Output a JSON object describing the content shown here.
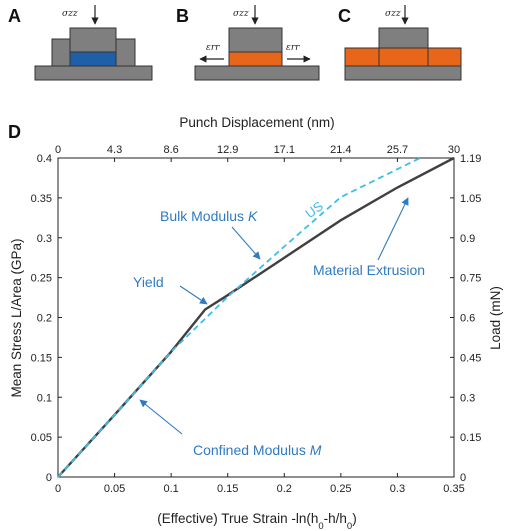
{
  "panels": {
    "A": {
      "label": "A",
      "stress": "σzz"
    },
    "B": {
      "label": "B",
      "stress": "σzz",
      "strain_left": "εrr",
      "strain_right": "εrr"
    },
    "C": {
      "label": "C",
      "stress": "σzz"
    },
    "D": {
      "label": "D"
    }
  },
  "colors": {
    "gray": "#7f7f7f",
    "blue_block": "#1f5fa8",
    "orange_block": "#e8661a",
    "measured": "#404040",
    "us_line": "#3dbde8",
    "annotation": "#2f7ac2"
  },
  "chart_data": {
    "type": "line",
    "xlabel": "(Effective) True Strain -ln(h0-h/h0)",
    "ylabel": "Mean Stress L/Area (GPa)",
    "x2label": "Punch Displacement (nm)",
    "y2label": "Load (mN)",
    "xlim": [
      0,
      0.35
    ],
    "ylim": [
      0,
      0.4
    ],
    "xticks": [
      "0",
      "0.05",
      "0.1",
      "0.15",
      "0.2",
      "0.25",
      "0.3",
      "0.35"
    ],
    "yticks": [
      "0",
      "0.05",
      "0.1",
      "0.15",
      "0.2",
      "0.25",
      "0.3",
      "0.35",
      "0.4"
    ],
    "x2ticks": [
      "0",
      "4.3",
      "8.6",
      "12.9",
      "17.1",
      "21.4",
      "25.7",
      "30"
    ],
    "y2ticks": [
      "0",
      "0.15",
      "0.3",
      "0.45",
      "0.6",
      "0.75",
      "0.9",
      "1.05",
      "1.19"
    ],
    "series": [
      {
        "style": "solid",
        "x": [
          0,
          0.05,
          0.1,
          0.13,
          0.15,
          0.2,
          0.25,
          0.3,
          0.35
        ],
        "y": [
          0,
          0.078,
          0.157,
          0.21,
          0.228,
          0.275,
          0.322,
          0.363,
          0.4
        ]
      },
      {
        "name": "US",
        "style": "dashed",
        "x": [
          0,
          0.05,
          0.1,
          0.15,
          0.2,
          0.25,
          0.3,
          0.32
        ],
        "y": [
          0,
          0.078,
          0.157,
          0.226,
          0.289,
          0.351,
          0.386,
          0.4
        ]
      }
    ],
    "annotations": {
      "bulk": "Bulk Modulus K",
      "yield": "Yield",
      "extrusion": "Material Extrusion",
      "confined": "Confined Modulus M",
      "us": "US"
    }
  }
}
